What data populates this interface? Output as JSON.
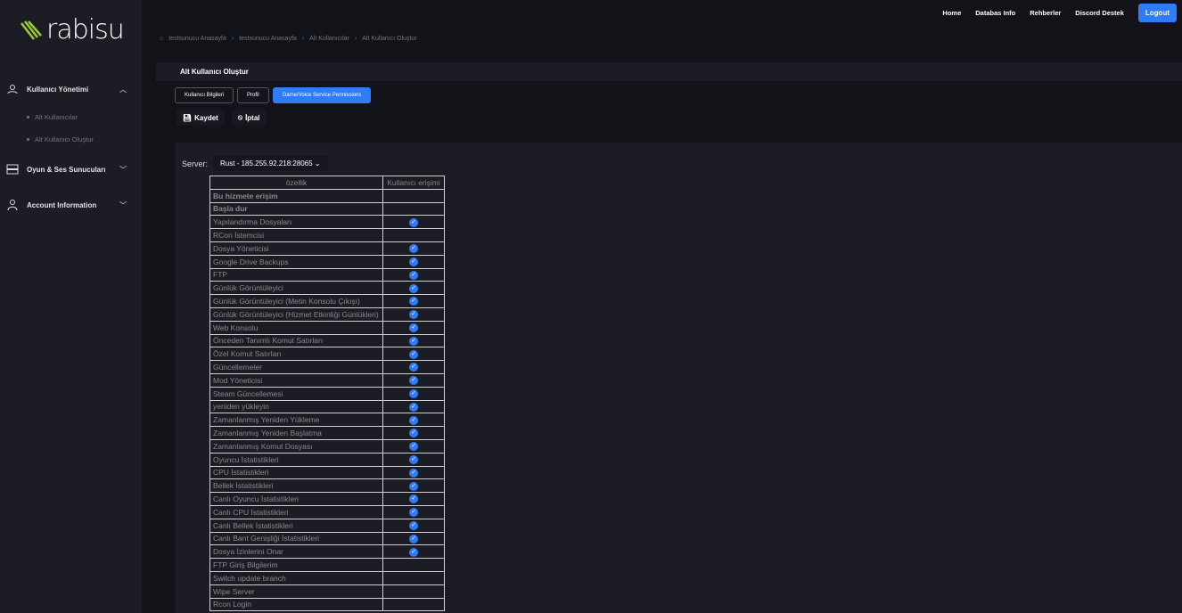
{
  "brand": {
    "logo_text": "rabisu",
    "accent": "#9acd32"
  },
  "sidebar": {
    "groups": [
      {
        "label": "Kullanıcı Yönetimi",
        "icon": "users-icon",
        "expanded": true,
        "items": [
          "Alt Kullanıcılar",
          "Alt Kullanıcı Oluştur"
        ]
      },
      {
        "label": "Oyun & Ses Sunucuları",
        "icon": "server-icon"
      },
      {
        "label": "Account Information",
        "icon": "user-icon"
      }
    ]
  },
  "topnav": {
    "items": [
      "Home",
      "Databas Info",
      "Rehberler",
      "Discord Destek"
    ],
    "logout": "Logout"
  },
  "breadcrumb": [
    "testsunucu Anasayfa",
    "testsunucu Anasayfa",
    "Alt Kullanıcılar",
    "Alt Kullanıcı Oluştur"
  ],
  "page_title": "Alt Kullanıcı Oluştur",
  "tabs": [
    {
      "label": "Kullanıcı Bilgileri"
    },
    {
      "label": "Profil"
    },
    {
      "label": "Game/Voice Service Permissions",
      "active": true
    }
  ],
  "actions": {
    "save": "Kaydet",
    "cancel": "İptal"
  },
  "server": {
    "label": "Server:",
    "selected": "Rust - 185.255.92.218:28065"
  },
  "table": {
    "headers": [
      "özellik",
      "Kullanıcı erişimi"
    ],
    "rows": [
      {
        "name": "Bu hizmete erişim",
        "checked": false
      },
      {
        "name": "Başla dur",
        "checked": false
      },
      {
        "name": "Yapılandırma Dosyaları",
        "checked": true
      },
      {
        "name": "RCon İstemcisi",
        "checked": false
      },
      {
        "name": "Dosya Yöneticisi",
        "checked": true
      },
      {
        "name": "Google Drive Backups",
        "checked": true
      },
      {
        "name": "FTP",
        "checked": true
      },
      {
        "name": "Günlük Görüntüleyici",
        "checked": true
      },
      {
        "name": "Günlük Görüntüleyici (Metin Konsolu Çıkışı)",
        "checked": true
      },
      {
        "name": "Günlük Görüntüleyici (Hizmet Etkinliği Günlükleri)",
        "checked": true
      },
      {
        "name": "Web Konsolu",
        "checked": true
      },
      {
        "name": "Önceden Tanımlı Komut Satırları",
        "checked": true
      },
      {
        "name": "Özel Komut Satırları",
        "checked": true
      },
      {
        "name": "Güncellemeler",
        "checked": true
      },
      {
        "name": "Mod Yöneticisi",
        "checked": true
      },
      {
        "name": "Steam Güncellemesi",
        "checked": true
      },
      {
        "name": "yeniden yükleyin",
        "checked": true
      },
      {
        "name": "Zamanlanmış Yeniden Yükleme",
        "checked": true
      },
      {
        "name": "Zamanlanmış Yeniden Başlatma",
        "checked": true
      },
      {
        "name": "Zamanlanmış Komut Dosyası",
        "checked": true
      },
      {
        "name": "Oyuncu İstatistikleri",
        "checked": true
      },
      {
        "name": "CPU İstatistikleri",
        "checked": true
      },
      {
        "name": "Bellek İstatistikleri",
        "checked": true
      },
      {
        "name": "Canlı Oyuncu İstatistikleri",
        "checked": true
      },
      {
        "name": "Canlı CPU İstatistikleri",
        "checked": true
      },
      {
        "name": "Canlı Bellek İstatistikleri",
        "checked": true
      },
      {
        "name": "Canlı Bant Genişliği İstatistikleri",
        "checked": true
      },
      {
        "name": "Dosya İzinlerini Onar",
        "checked": true
      },
      {
        "name": "FTP Giriş Bilgilerim",
        "checked": false
      },
      {
        "name": "Switch update branch",
        "checked": false
      },
      {
        "name": "Wipe Server",
        "checked": false
      },
      {
        "name": "Rcon Login",
        "checked": false
      }
    ]
  }
}
